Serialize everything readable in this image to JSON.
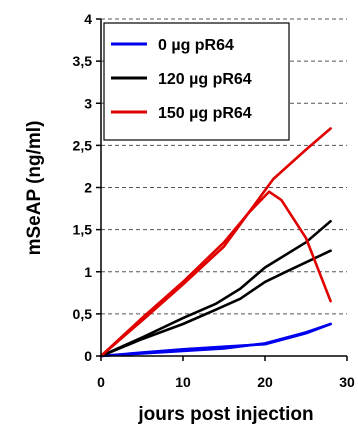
{
  "chart_data": {
    "type": "line",
    "title": "",
    "xlabel": "jours post injection",
    "ylabel": "mSeAP (ng/ml)",
    "xlim": [
      0,
      30
    ],
    "ylim": [
      0,
      4
    ],
    "x_ticks": [
      0,
      10,
      20,
      30
    ],
    "x_tick_labels": [
      "0",
      "10",
      "20",
      "30"
    ],
    "y_ticks": [
      0,
      0.5,
      1,
      1.5,
      2,
      2.5,
      3,
      3.5,
      4
    ],
    "y_tick_labels": [
      "0",
      "0,5",
      "1",
      "1,5",
      "2",
      "2,5",
      "3",
      "3,5",
      "4"
    ],
    "grid": "horizontal dashed",
    "legend_position": "top-left",
    "series": [
      {
        "name": "0 µg pR64",
        "color": "#0000ee",
        "x": [
          0,
          5,
          10,
          15,
          20,
          25,
          28
        ],
        "y": [
          0,
          0.03,
          0.06,
          0.09,
          0.15,
          0.28,
          0.38
        ]
      },
      {
        "color": "#0000ee",
        "x": [
          0,
          5,
          10,
          15,
          20,
          25,
          28
        ],
        "y": [
          0,
          0.04,
          0.08,
          0.11,
          0.14,
          0.27,
          0.38
        ]
      },
      {
        "name": "120 µg pR64",
        "color": "#000000",
        "x": [
          0,
          5,
          10,
          14,
          17,
          20,
          25,
          28
        ],
        "y": [
          0,
          0.22,
          0.45,
          0.62,
          0.8,
          1.05,
          1.35,
          1.6
        ]
      },
      {
        "color": "#000000",
        "x": [
          0,
          5,
          10,
          14,
          17,
          20,
          23,
          28
        ],
        "y": [
          0,
          0.2,
          0.38,
          0.55,
          0.68,
          0.88,
          1.02,
          1.25
        ]
      },
      {
        "name": "150 µg pR64",
        "color": "#e00000",
        "x": [
          0,
          5,
          10,
          15,
          18,
          21,
          25,
          28
        ],
        "y": [
          0,
          0.45,
          0.88,
          1.35,
          1.7,
          2.1,
          2.45,
          2.7
        ]
      },
      {
        "color": "#e00000",
        "x": [
          0,
          5,
          10,
          15,
          18,
          20.5,
          22,
          25,
          28
        ],
        "y": [
          0,
          0.42,
          0.85,
          1.3,
          1.7,
          1.95,
          1.85,
          1.4,
          0.65
        ]
      }
    ]
  }
}
